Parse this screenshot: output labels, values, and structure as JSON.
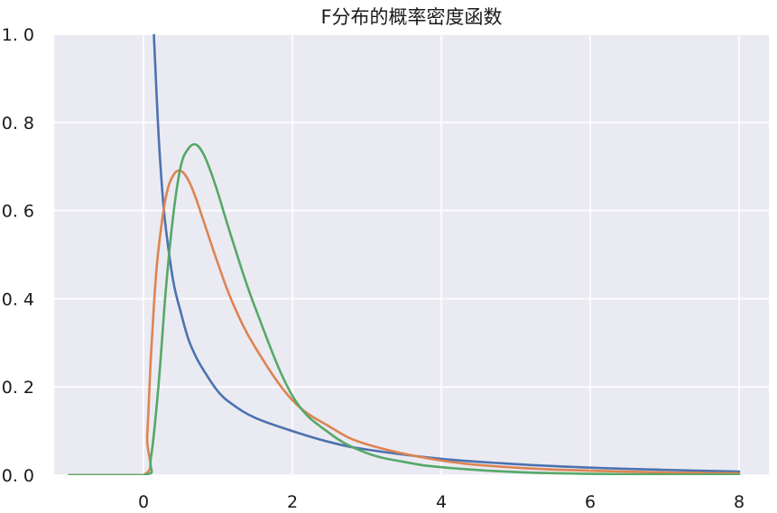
{
  "chart_data": {
    "type": "line",
    "title": "F分布的概率密度函数",
    "xlabel": "",
    "ylabel": "",
    "xlim": [
      -1.2,
      8.4
    ],
    "ylim": [
      0.0,
      1.0
    ],
    "grid": true,
    "x_ticks": [
      0,
      2,
      4,
      6,
      8
    ],
    "x_tick_labels": [
      "0",
      "2",
      "4",
      "6",
      "8"
    ],
    "y_ticks": [
      0.0,
      0.2,
      0.4,
      0.6,
      0.8,
      1.0
    ],
    "y_tick_labels": [
      "0. 0",
      "0. 2",
      "0. 4",
      "0. 6",
      "0. 8",
      "1. 0"
    ],
    "series": [
      {
        "color": "#4c72b0",
        "x": [
          0.14,
          0.15,
          0.2,
          0.25,
          0.3,
          0.4,
          0.5,
          0.6,
          0.7,
          0.8,
          1.0,
          1.2,
          1.5,
          2.0,
          2.5,
          3.0,
          4.0,
          5.0,
          6.0,
          7.0,
          8.0
        ],
        "y": [
          1.0,
          0.96,
          0.78,
          0.65,
          0.56,
          0.44,
          0.37,
          0.31,
          0.27,
          0.24,
          0.19,
          0.16,
          0.13,
          0.1,
          0.075,
          0.058,
          0.037,
          0.025,
          0.017,
          0.012,
          0.008
        ]
      },
      {
        "color": "#dd8452",
        "x": [
          -1.0,
          0.0,
          0.05,
          0.1,
          0.15,
          0.2,
          0.3,
          0.4,
          0.5,
          0.6,
          0.7,
          0.8,
          1.0,
          1.2,
          1.5,
          2.0,
          2.5,
          3.0,
          4.0,
          5.0,
          6.0,
          7.0,
          8.0
        ],
        "y": [
          0.0,
          0.0,
          0.09,
          0.27,
          0.41,
          0.51,
          0.63,
          0.68,
          0.69,
          0.67,
          0.63,
          0.58,
          0.48,
          0.39,
          0.29,
          0.17,
          0.11,
          0.07,
          0.033,
          0.017,
          0.01,
          0.006,
          0.004
        ]
      },
      {
        "color": "#55a868",
        "x": [
          -1.0,
          0.0,
          0.1,
          0.2,
          0.3,
          0.4,
          0.5,
          0.6,
          0.7,
          0.8,
          0.9,
          1.0,
          1.2,
          1.5,
          2.0,
          2.5,
          3.0,
          3.5,
          4.0,
          5.0,
          6.0,
          7.0,
          8.0
        ],
        "y": [
          0.0,
          0.0,
          0.04,
          0.2,
          0.42,
          0.59,
          0.7,
          0.74,
          0.75,
          0.73,
          0.69,
          0.64,
          0.53,
          0.38,
          0.18,
          0.095,
          0.05,
          0.03,
          0.018,
          0.007,
          0.003,
          0.0015,
          0.001
        ]
      }
    ]
  }
}
